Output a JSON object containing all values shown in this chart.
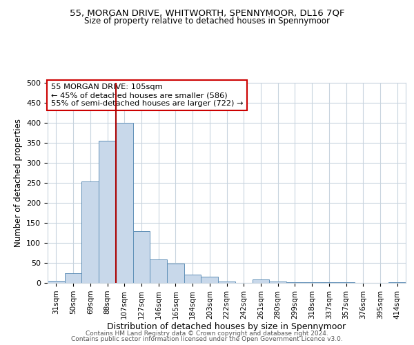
{
  "title1": "55, MORGAN DRIVE, WHITWORTH, SPENNYMOOR, DL16 7QF",
  "title2": "Size of property relative to detached houses in Spennymoor",
  "xlabel": "Distribution of detached houses by size in Spennymoor",
  "ylabel": "Number of detached properties",
  "categories": [
    "31sqm",
    "50sqm",
    "69sqm",
    "88sqm",
    "107sqm",
    "127sqm",
    "146sqm",
    "165sqm",
    "184sqm",
    "203sqm",
    "222sqm",
    "242sqm",
    "261sqm",
    "280sqm",
    "299sqm",
    "318sqm",
    "337sqm",
    "357sqm",
    "376sqm",
    "395sqm",
    "414sqm"
  ],
  "values": [
    5,
    25,
    253,
    355,
    400,
    130,
    58,
    48,
    20,
    15,
    3,
    0,
    8,
    3,
    1,
    1,
    1,
    1,
    0,
    0,
    1
  ],
  "bar_color": "#c8d8ea",
  "bar_edge_color": "#6090b8",
  "vline_color": "#aa0000",
  "ylim": [
    0,
    500
  ],
  "yticks": [
    0,
    50,
    100,
    150,
    200,
    250,
    300,
    350,
    400,
    450,
    500
  ],
  "annotation_title": "55 MORGAN DRIVE: 105sqm",
  "annotation_line1": "← 45% of detached houses are smaller (586)",
  "annotation_line2": "55% of semi-detached houses are larger (722) →",
  "annotation_box_color": "white",
  "annotation_box_edge": "#cc0000",
  "footer1": "Contains HM Land Registry data © Crown copyright and database right 2024.",
  "footer2": "Contains public sector information licensed under the Open Government Licence v3.0.",
  "grid_color": "#c8d4de",
  "background_color": "white"
}
